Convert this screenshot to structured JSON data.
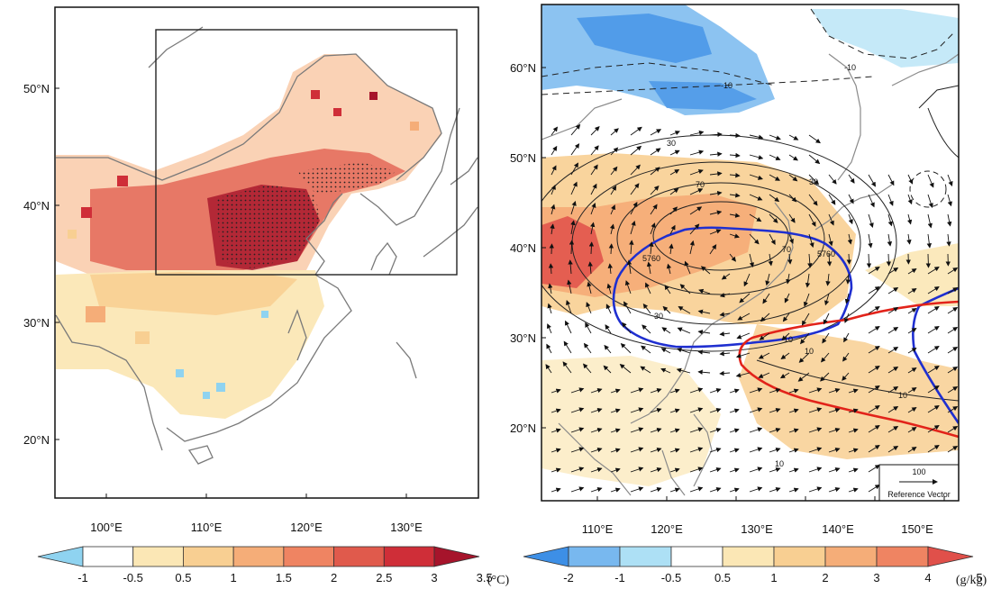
{
  "left_panel": {
    "lat_labels": [
      "50°N",
      "40°N",
      "30°N",
      "20°N"
    ],
    "lon_labels": [
      "100°E",
      "110°E",
      "120°E",
      "130°E"
    ]
  },
  "right_panel": {
    "lat_labels": [
      "60°N",
      "50°N",
      "40°N",
      "30°N",
      "20°N"
    ],
    "lon_labels": [
      "110°E",
      "120°E",
      "130°E",
      "140°E",
      "150°E"
    ],
    "contour_labels": [
      "-10",
      "-10",
      "30",
      "30",
      "70",
      "70",
      "5760",
      "5760",
      "30",
      "10",
      "10",
      "10",
      "10"
    ],
    "reference_vector": {
      "value": "100",
      "label": "Reference Vector"
    }
  },
  "left_colorbar": {
    "ticks": [
      "-1",
      "-0.5",
      "0.5",
      "1",
      "1.5",
      "2",
      "2.5",
      "3",
      "3.5"
    ],
    "unit": "(°C)",
    "colors": [
      "#8fd3f0",
      "#ffffff",
      "#fbe7b5",
      "#f8cf92",
      "#f5ad78",
      "#ef8462",
      "#e05a4c",
      "#cf2e38",
      "#a6142b"
    ]
  },
  "right_colorbar": {
    "ticks": [
      "-2",
      "-1",
      "-0.5",
      "0.5",
      "1",
      "2",
      "3",
      "4",
      "5"
    ],
    "unit": "(g/kg)",
    "colors": [
      "#3d8fe6",
      "#78b8ef",
      "#ade0f5",
      "#ffffff",
      "#fbe7b5",
      "#f8cf92",
      "#f5ad78",
      "#ef8462",
      "#e0504a"
    ]
  }
}
